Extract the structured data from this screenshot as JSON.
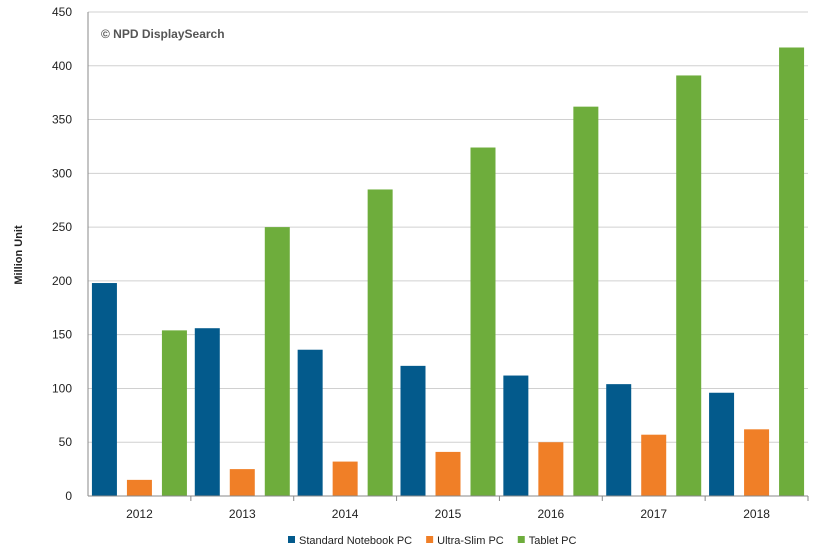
{
  "watermark": "© NPD DisplaySearch",
  "chart_data": {
    "type": "bar",
    "categories": [
      "2012",
      "2013",
      "2014",
      "2015",
      "2016",
      "2017",
      "2018"
    ],
    "series": [
      {
        "name": "Standard Notebook PC",
        "color": "#035a8c",
        "values": [
          198,
          156,
          136,
          121,
          112,
          104,
          96
        ]
      },
      {
        "name": "Ultra-Slim PC",
        "color": "#f07f27",
        "values": [
          15,
          25,
          32,
          41,
          50,
          57,
          62
        ]
      },
      {
        "name": "Tablet PC",
        "color": "#6ead3c",
        "values": [
          154,
          250,
          285,
          324,
          362,
          391,
          417
        ]
      }
    ],
    "ylabel": "Million Unit",
    "xlabel": "",
    "ylim": [
      0,
      450
    ],
    "yticks": [
      0,
      50,
      100,
      150,
      200,
      250,
      300,
      350,
      400,
      450
    ],
    "grid": true,
    "legend_position": "bottom"
  }
}
